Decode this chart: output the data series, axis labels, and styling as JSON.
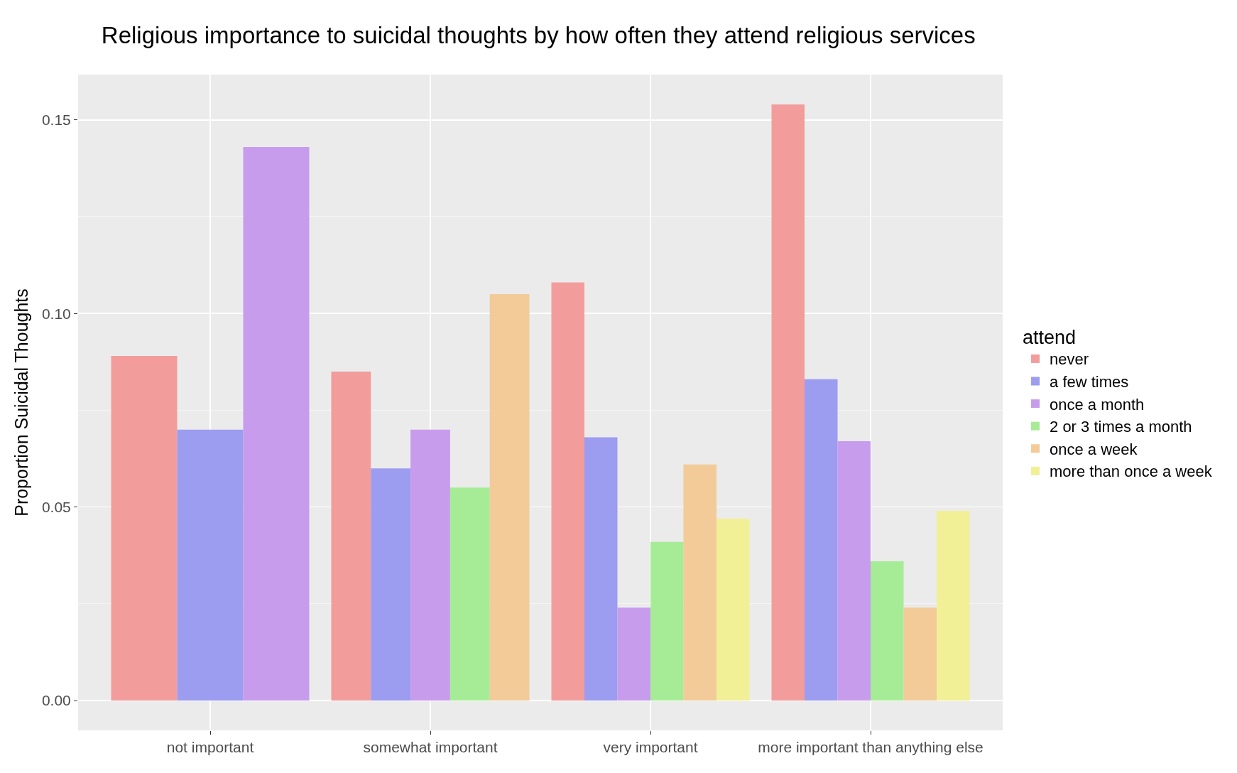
{
  "chart_data": {
    "type": "bar",
    "title": "Religious importance to suicidal thoughts by how often they attend religious services",
    "ylabel": "Proportion Suicidal Thoughts",
    "legend_title": "attend",
    "categories": [
      "not important",
      "somewhat important",
      "very important",
      "more important than anything else"
    ],
    "series": [
      {
        "name": "never",
        "color": "#f39c9c",
        "values": [
          0.089,
          0.085,
          0.108,
          0.154
        ]
      },
      {
        "name": "a few times",
        "color": "#9c9cf0",
        "values": [
          0.07,
          0.06,
          0.068,
          0.083
        ]
      },
      {
        "name": "once a month",
        "color": "#c89cec",
        "values": [
          0.143,
          0.07,
          0.024,
          0.067
        ]
      },
      {
        "name": "2 or 3 times a month",
        "color": "#a6ec96",
        "values": [
          null,
          0.055,
          0.041,
          0.036
        ]
      },
      {
        "name": "once a week",
        "color": "#f2cb98",
        "values": [
          null,
          0.105,
          0.061,
          0.024
        ]
      },
      {
        "name": "more than once a week",
        "color": "#f2f096",
        "values": [
          null,
          null,
          0.047,
          0.049
        ]
      }
    ],
    "ylim": [
      -0.0077,
      0.1617
    ],
    "yticks": [
      {
        "value": 0,
        "label": "0.00"
      },
      {
        "value": 0.05,
        "label": "0.05"
      },
      {
        "value": 0.1,
        "label": "0.10"
      },
      {
        "value": 0.15,
        "label": "0.15"
      }
    ],
    "grid": true,
    "legend": "right"
  }
}
